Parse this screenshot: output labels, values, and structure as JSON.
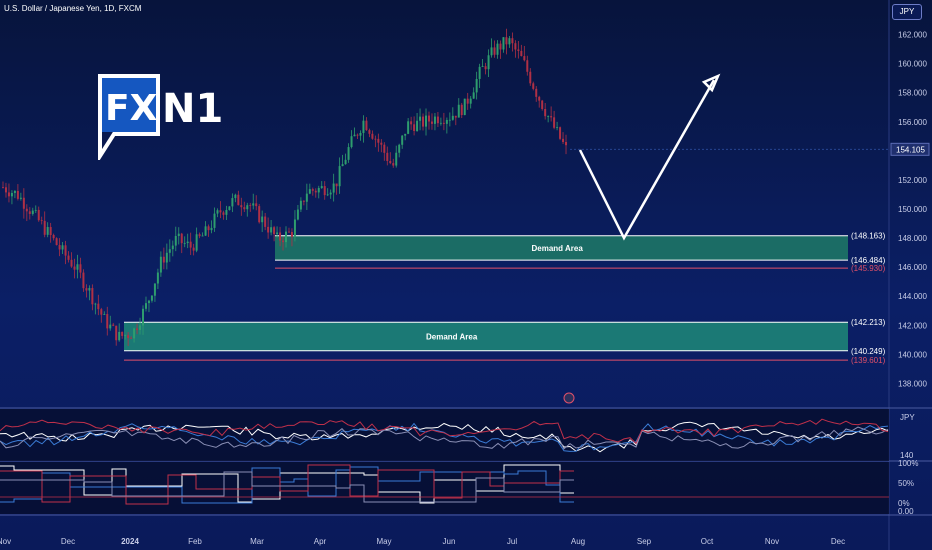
{
  "header": {
    "title": "U.S. Dollar / Japanese Yen, 1D, FXCM",
    "currency_button": "JPY"
  },
  "logo": {
    "text_fx": "FX",
    "text_n1": "N1"
  },
  "colors": {
    "up": "#2e9d6e",
    "down": "#b03045",
    "zone_fill": "#1f7a66",
    "zone_fill_2": "#1f8a78",
    "white": "#ffffff",
    "red_line": "#e0506a"
  },
  "chart_data": {
    "type": "candlestick",
    "title": "U.S. Dollar / Japanese Yen, 1D, FXCM",
    "ylim": [
      137,
      163
    ],
    "y_ticks": [
      "162.000",
      "160.000",
      "158.000",
      "156.000",
      "154.000",
      "152.000",
      "150.000",
      "148.000",
      "146.000",
      "144.000",
      "142.000",
      "140.000",
      "138.000"
    ],
    "x_ticks": [
      "Nov",
      "Dec",
      "2024",
      "Feb",
      "Mar",
      "Apr",
      "May",
      "Jun",
      "Jul",
      "Aug",
      "Sep",
      "Oct",
      "Nov",
      "Dec"
    ],
    "last_price": "154.105",
    "close_path": [
      151.5,
      151.0,
      149.8,
      148.5,
      147.2,
      146.0,
      144.3,
      142.4,
      141.2,
      141.5,
      143.5,
      146.5,
      147.9,
      147.4,
      148.3,
      149.8,
      150.6,
      150.4,
      149.2,
      147.9,
      148.4,
      151.2,
      151.4,
      151.6,
      154.3,
      156.1,
      154.6,
      152.9,
      155.8,
      155.9,
      156.3,
      156.4,
      157.1,
      159.3,
      160.9,
      161.6,
      160.2,
      157.9,
      155.9,
      154.1
    ],
    "zones": [
      {
        "label": "Demand Area",
        "top": 148.163,
        "bottom": 146.484,
        "top_label": "(148.163)",
        "bottom_label": "(146.484)"
      },
      {
        "label": "Demand Area",
        "top": 142.213,
        "bottom": 140.249,
        "top_label": "(142.213)",
        "bottom_label": "(140.249)"
      }
    ],
    "red_levels": [
      {
        "value": 145.93,
        "label": "(145.930)"
      },
      {
        "value": 139.601,
        "label": "(139.601)"
      }
    ],
    "projection": [
      [
        154.1,
        148.3
      ],
      [
        160.0,
        1
      ]
    ],
    "indicator_1": {
      "label": "JPY",
      "tick": "140"
    },
    "indicator_2": {
      "ticks": [
        "100%",
        "50%",
        "0%",
        "0.00"
      ]
    }
  }
}
